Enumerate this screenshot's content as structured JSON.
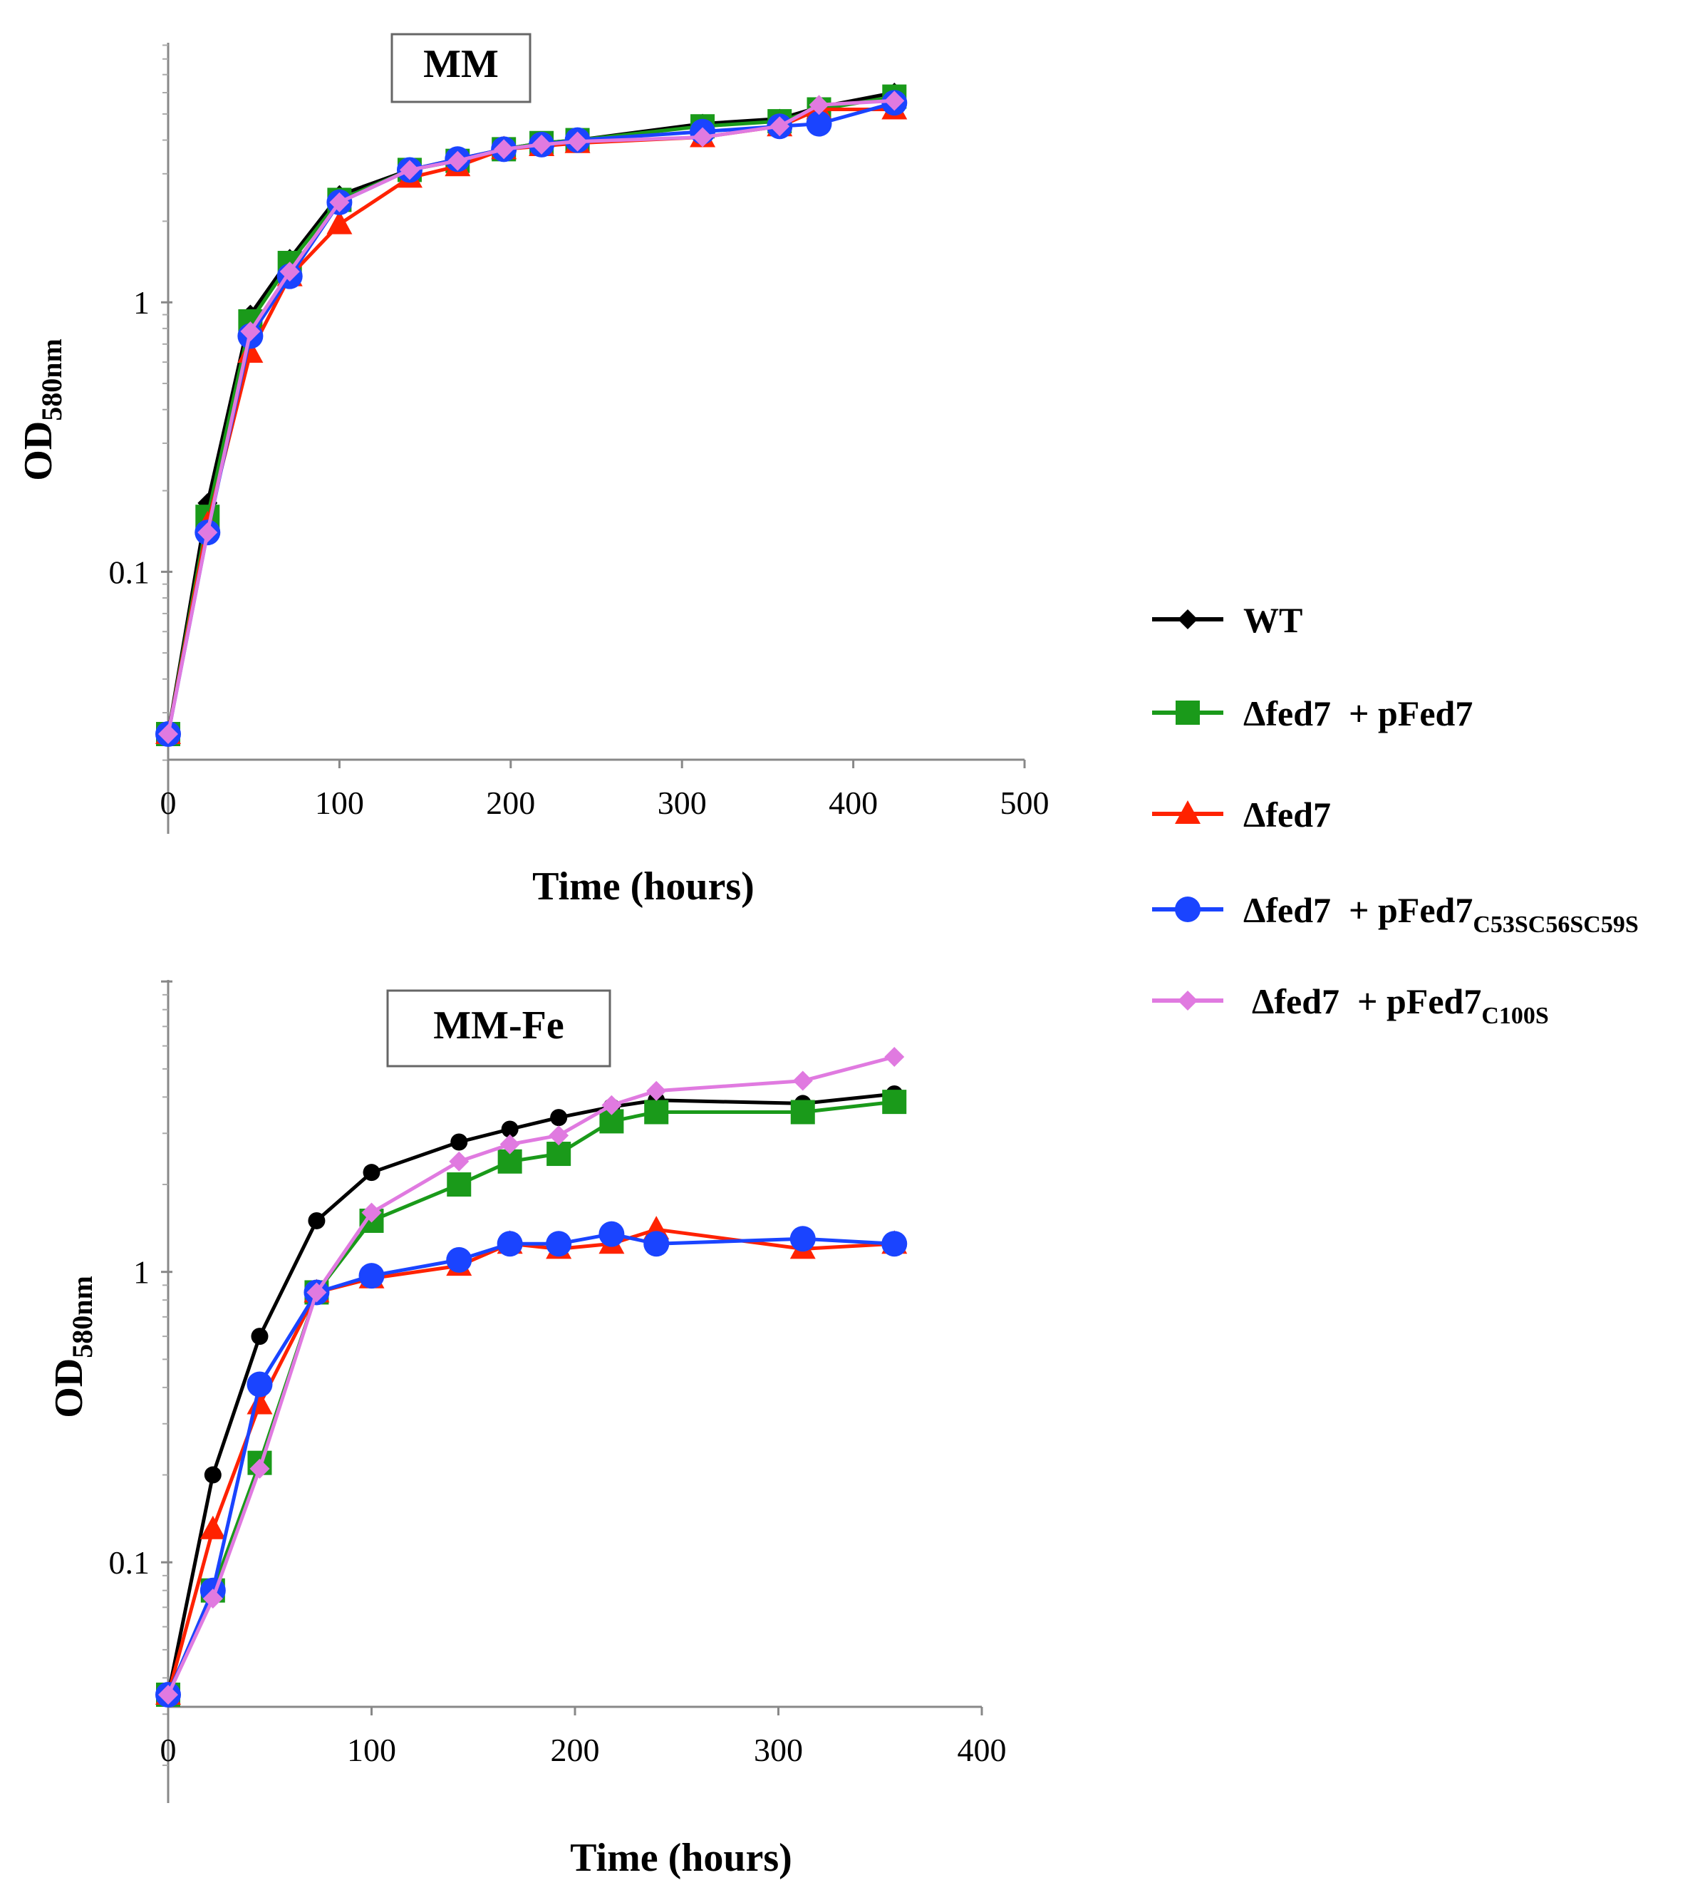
{
  "legend": [
    {
      "key": "wt",
      "label": "WT",
      "color": "#000000",
      "marker": "diamond"
    },
    {
      "key": "comp",
      "label": "Δfed7  + pFed7",
      "color": "#1a9a1a",
      "marker": "square"
    },
    {
      "key": "mut",
      "label": "Δfed7",
      "color": "#ff2200",
      "marker": "triangle"
    },
    {
      "key": "c53",
      "label": "Δfed7  + pFed7",
      "subscript": "C53SC56SC59S",
      "color": "#1a44ff",
      "marker": "circle"
    },
    {
      "key": "c100",
      "label": "Δfed7  + pFed7",
      "subscript": "C100S",
      "color": "#e07ae0",
      "marker": "diamond"
    }
  ],
  "chart_data": [
    {
      "type": "line",
      "title": "MM",
      "xlabel": "Time (hours)",
      "ylabel": "OD",
      "ylabel_sub": "580nm",
      "yscale": "log",
      "xlim": [
        0,
        500
      ],
      "ylim": [
        0.025,
        10
      ],
      "x_ticks": [
        "0",
        "100",
        "200",
        "300",
        "400",
        "500"
      ],
      "y_ticks": [
        "0.1",
        "1"
      ],
      "series": [
        {
          "name": "WT",
          "marker": "diamond",
          "x": [
            0,
            23,
            48,
            71,
            100,
            141,
            169,
            196,
            218,
            239,
            312,
            357,
            380,
            424
          ],
          "y": [
            0.025,
            0.18,
            0.9,
            1.45,
            2.5,
            3.1,
            3.4,
            3.7,
            3.9,
            4.0,
            4.6,
            4.8,
            5.3,
            6.0
          ]
        },
        {
          "name": "Δfed7  + pFed7",
          "marker": "square",
          "x": [
            0,
            23,
            48,
            71,
            100,
            141,
            169,
            196,
            218,
            239,
            312,
            357,
            380,
            424
          ],
          "y": [
            0.025,
            0.16,
            0.85,
            1.4,
            2.4,
            3.1,
            3.35,
            3.7,
            3.9,
            4.0,
            4.5,
            4.7,
            5.2,
            5.8
          ]
        },
        {
          "name": "Δfed7",
          "marker": "triangle",
          "x": [
            0,
            23,
            48,
            71,
            100,
            141,
            169,
            196,
            218,
            239,
            312,
            357,
            380,
            424
          ],
          "y": [
            0.025,
            0.15,
            0.65,
            1.25,
            1.95,
            2.9,
            3.2,
            3.7,
            3.8,
            3.9,
            4.1,
            4.5,
            5.2,
            5.2
          ]
        },
        {
          "name": "Δfed7  + pFed7 C53SC56SC59S",
          "marker": "circle",
          "x": [
            0,
            23,
            48,
            71,
            100,
            141,
            169,
            196,
            218,
            239,
            312,
            357,
            380,
            424
          ],
          "y": [
            0.025,
            0.14,
            0.75,
            1.25,
            2.35,
            3.1,
            3.4,
            3.7,
            3.85,
            4.0,
            4.3,
            4.5,
            4.6,
            5.5
          ]
        },
        {
          "name": "Δfed7  + pFed7 C100S",
          "marker": "diamond",
          "x": [
            0,
            23,
            48,
            71,
            100,
            141,
            169,
            196,
            218,
            239,
            312,
            357,
            380,
            424
          ],
          "y": [
            0.025,
            0.14,
            0.78,
            1.3,
            2.35,
            3.1,
            3.35,
            3.7,
            3.85,
            3.95,
            4.1,
            4.5,
            5.4,
            5.6
          ]
        }
      ]
    },
    {
      "type": "line",
      "title": "MM-Fe",
      "xlabel": "Time (hours)",
      "ylabel": "OD",
      "ylabel_sub": "580nm",
      "yscale": "log",
      "xlim": [
        0,
        400
      ],
      "ylim": [
        0.025,
        10
      ],
      "x_ticks": [
        "0",
        "100",
        "200",
        "300",
        "400"
      ],
      "y_ticks": [
        "0.1",
        "1"
      ],
      "series": [
        {
          "name": "WT",
          "marker": "circle-small",
          "x": [
            0,
            22,
            45,
            73,
            100,
            143,
            168,
            192,
            218,
            240,
            312,
            357
          ],
          "y": [
            0.035,
            0.2,
            0.6,
            1.5,
            2.2,
            2.8,
            3.1,
            3.4,
            3.7,
            3.9,
            3.8,
            4.1
          ]
        },
        {
          "name": "Δfed7  + pFed7",
          "marker": "square",
          "x": [
            0,
            22,
            45,
            73,
            100,
            143,
            168,
            192,
            218,
            240,
            312,
            357
          ],
          "y": [
            0.035,
            0.08,
            0.22,
            0.85,
            1.5,
            2.0,
            2.4,
            2.55,
            3.3,
            3.55,
            3.55,
            3.85
          ]
        },
        {
          "name": "Δfed7",
          "marker": "triangle",
          "x": [
            0,
            22,
            45,
            73,
            100,
            143,
            168,
            192,
            218,
            240,
            312,
            357
          ],
          "y": [
            0.035,
            0.13,
            0.35,
            0.85,
            0.95,
            1.05,
            1.25,
            1.2,
            1.25,
            1.4,
            1.2,
            1.25
          ]
        },
        {
          "name": "Δfed7  + pFed7 C53SC56SC59S",
          "marker": "circle",
          "x": [
            0,
            22,
            45,
            73,
            100,
            143,
            168,
            192,
            218,
            240,
            312,
            357
          ],
          "y": [
            0.035,
            0.08,
            0.41,
            0.85,
            0.97,
            1.1,
            1.25,
            1.25,
            1.35,
            1.25,
            1.3,
            1.25
          ]
        },
        {
          "name": "Δfed7  + pFed7 C100S",
          "marker": "diamond",
          "x": [
            0,
            22,
            45,
            73,
            100,
            143,
            168,
            192,
            218,
            240,
            312,
            357
          ],
          "y": [
            0.035,
            0.075,
            0.21,
            0.85,
            1.6,
            2.4,
            2.75,
            2.95,
            3.75,
            4.2,
            4.55,
            5.5
          ]
        }
      ]
    }
  ]
}
